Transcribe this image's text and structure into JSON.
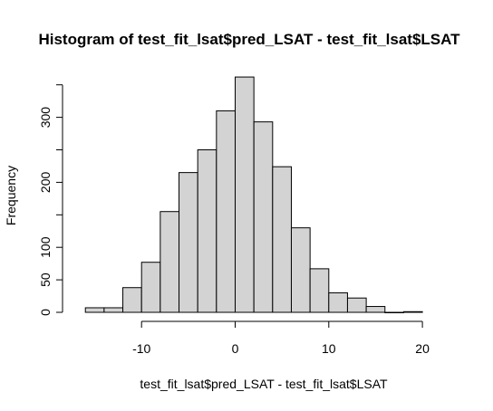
{
  "chart_data": {
    "type": "bar",
    "title": "Histogram of test_fit_lsat$pred_LSAT - test_fit_lsat$LSAT",
    "xlabel": "test_fit_lsat$pred_LSAT - test_fit_lsat$LSAT",
    "ylabel": "Frequency",
    "bin_width": 2,
    "bins": [
      {
        "start": -16,
        "end": -14,
        "count": 7
      },
      {
        "start": -14,
        "end": -12,
        "count": 7
      },
      {
        "start": -12,
        "end": -10,
        "count": 38
      },
      {
        "start": -10,
        "end": -8,
        "count": 77
      },
      {
        "start": -8,
        "end": -6,
        "count": 155
      },
      {
        "start": -6,
        "end": -4,
        "count": 215
      },
      {
        "start": -4,
        "end": -2,
        "count": 250
      },
      {
        "start": -2,
        "end": 0,
        "count": 310
      },
      {
        "start": 0,
        "end": 2,
        "count": 362
      },
      {
        "start": 2,
        "end": 4,
        "count": 293
      },
      {
        "start": 4,
        "end": 6,
        "count": 224
      },
      {
        "start": 6,
        "end": 8,
        "count": 130
      },
      {
        "start": 8,
        "end": 10,
        "count": 67
      },
      {
        "start": 10,
        "end": 12,
        "count": 30
      },
      {
        "start": 12,
        "end": 14,
        "count": 22
      },
      {
        "start": 14,
        "end": 16,
        "count": 9
      },
      {
        "start": 16,
        "end": 18,
        "count": 0
      },
      {
        "start": 18,
        "end": 20,
        "count": 1
      }
    ],
    "x_ticks": [
      -10,
      0,
      10,
      20
    ],
    "x_tick_labels": [
      "-10",
      "0",
      "10",
      "20"
    ],
    "y_ticks": [
      0,
      50,
      100,
      200,
      300
    ],
    "y_tick_labels": [
      "0",
      "50",
      "100",
      "200",
      "300"
    ],
    "y_minor_ticks": [
      150,
      250,
      350
    ],
    "xlim": [
      -10,
      20
    ],
    "ylim": [
      0,
      350
    ],
    "grid": false
  }
}
